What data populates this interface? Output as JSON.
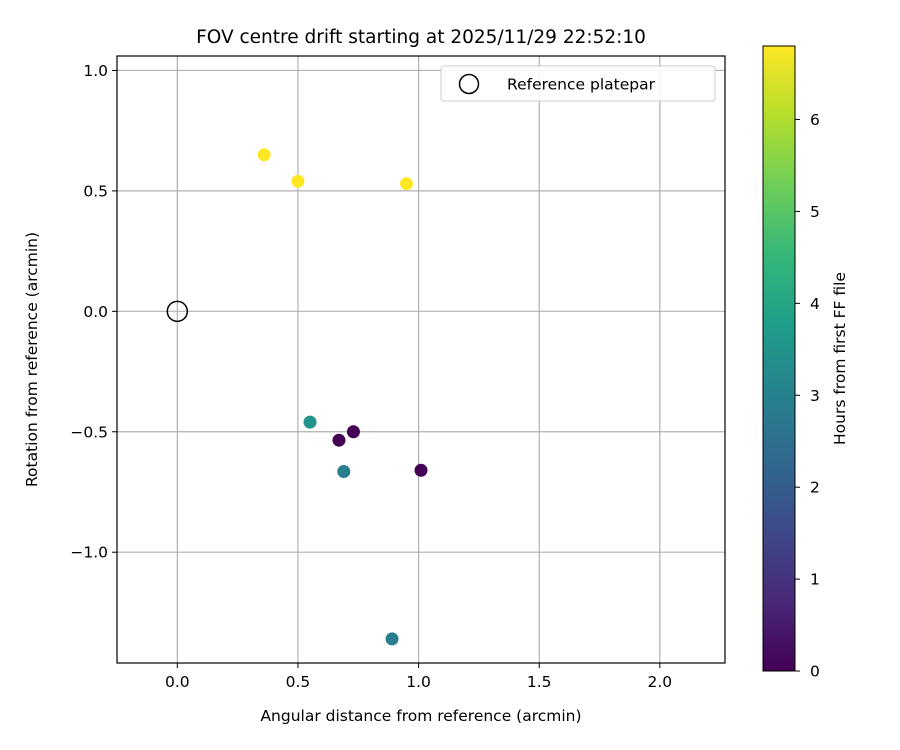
{
  "chart_data": {
    "type": "scatter",
    "title": "FOV centre drift starting at 2025/11/29 22:52:10",
    "xlabel": "Angular distance from reference (arcmin)",
    "ylabel": "Rotation from reference (arcmin)",
    "xlim": [
      -0.25,
      2.27
    ],
    "ylim": [
      -1.46,
      1.06
    ],
    "xticks": [
      0.0,
      0.5,
      1.0,
      1.5,
      2.0
    ],
    "xtick_labels": [
      "0.0",
      "0.5",
      "1.0",
      "1.5",
      "2.0"
    ],
    "yticks": [
      -1.0,
      -0.5,
      0.0,
      0.5,
      1.0
    ],
    "ytick_labels": [
      "−1.0",
      "−0.5",
      "0.0",
      "0.5",
      "1.0"
    ],
    "grid": true,
    "reference": {
      "x": 0.0,
      "y": 0.0,
      "label": "Reference platepar"
    },
    "legend": {
      "position": "top-right",
      "entries": [
        "Reference platepar"
      ]
    },
    "points": [
      {
        "x": 0.36,
        "y": 0.65,
        "hours": 6.8
      },
      {
        "x": 0.5,
        "y": 0.54,
        "hours": 6.8
      },
      {
        "x": 0.95,
        "y": 0.53,
        "hours": 6.8
      },
      {
        "x": 0.55,
        "y": -0.46,
        "hours": 3.5
      },
      {
        "x": 0.67,
        "y": -0.535,
        "hours": 0.0
      },
      {
        "x": 0.73,
        "y": -0.5,
        "hours": 0.0
      },
      {
        "x": 0.69,
        "y": -0.665,
        "hours": 2.9
      },
      {
        "x": 1.01,
        "y": -0.66,
        "hours": 0.0
      },
      {
        "x": 0.89,
        "y": -1.36,
        "hours": 2.9
      }
    ],
    "colorbar": {
      "label": "Hours from first FF file",
      "min": 0,
      "max": 6.8,
      "ticks": [
        0,
        1,
        2,
        3,
        4,
        5,
        6
      ],
      "tick_labels": [
        "0",
        "1",
        "2",
        "3",
        "4",
        "5",
        "6"
      ],
      "colormap": "viridis",
      "stops": [
        "#440154",
        "#482878",
        "#3e4989",
        "#31688e",
        "#26828e",
        "#1f9e89",
        "#35b779",
        "#6ece58",
        "#b5de2b",
        "#fde725"
      ]
    }
  }
}
